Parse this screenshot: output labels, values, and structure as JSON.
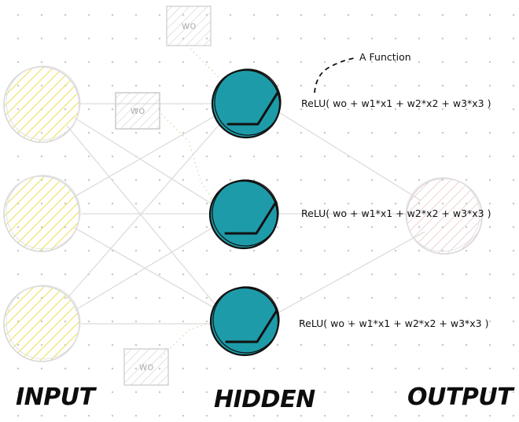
{
  "layers": {
    "input": "INPUT",
    "hidden": "HIDDEN",
    "output": "OUTPUT"
  },
  "weight_label": "wo",
  "annotation": "A Function",
  "formulas": [
    "ReLU( wo + w1*x1 + w2*x2 + w3*x3 )",
    "ReLU( wo + w1*x1 + w2*x2 + w3*x3 )",
    "ReLU( wo + w1*x1 + w2*x2 + w3*x3 )"
  ],
  "colors": {
    "input_fill": "#efe36a",
    "hidden_fill": "#1e9ba8",
    "output_fill": "#f1d6d6",
    "stroke": "#111111"
  }
}
